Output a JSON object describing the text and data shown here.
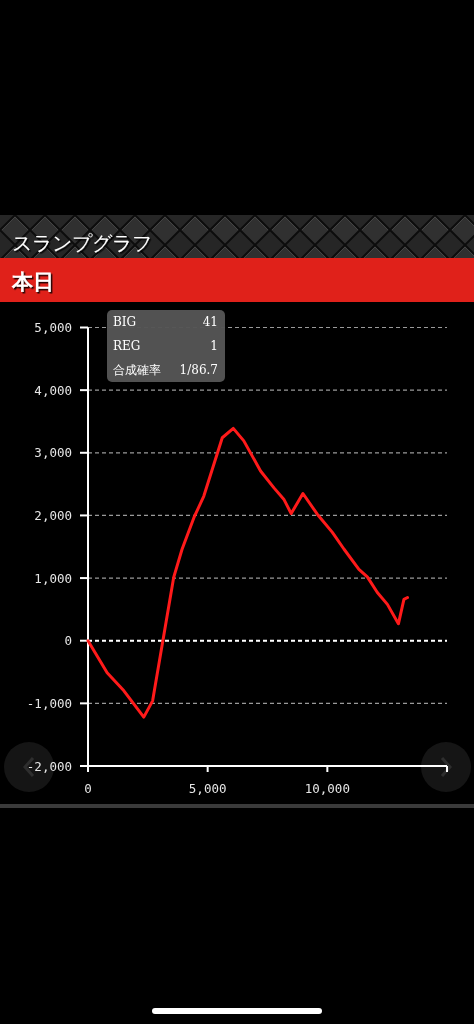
{
  "chart_data": {
    "type": "line",
    "title": "スランプグラフ",
    "subtitle": "本日",
    "x": [
      0,
      800,
      1500,
      2330,
      2700,
      3580,
      3930,
      4420,
      4840,
      5610,
      6070,
      6510,
      7210,
      7770,
      8180,
      8490,
      8980,
      9580,
      10210,
      10700,
      11320,
      11670,
      12090,
      12510,
      12970,
      13200,
      13350
    ],
    "series": [
      {
        "color": "#ff1a1a",
        "values": [
          0,
          -510,
          -800,
          -1220,
          -960,
          1010,
          1460,
          1960,
          2310,
          3240,
          3390,
          3190,
          2710,
          2440,
          2260,
          2030,
          2350,
          2020,
          1730,
          1460,
          1140,
          1020,
          770,
          580,
          270,
          660,
          690
        ]
      }
    ],
    "xlim": [
      0,
      15000
    ],
    "xticks": [
      0,
      {
        "value": 5000,
        "label": "5,000"
      },
      {
        "value": 10000,
        "label": "10,000"
      },
      {
        "value": 15000,
        "label": null
      }
    ],
    "ylim": [
      -2000,
      5000
    ],
    "yticks": [
      {
        "value": -2000,
        "label": "-2,000"
      },
      {
        "value": -1000,
        "label": "-1,000"
      },
      0,
      {
        "value": 1000,
        "label": "1,000"
      },
      {
        "value": 2000,
        "label": "2,000"
      },
      {
        "value": 3000,
        "label": "3,000"
      },
      {
        "value": 4000,
        "label": "4,000"
      },
      {
        "value": 5000,
        "label": "5,000"
      }
    ],
    "grid": "y",
    "line_style": "solid",
    "ref_lines": [
      {
        "axis": "y",
        "value": 0,
        "color": "#ffffff",
        "line_style": "dashed"
      }
    ],
    "annotations": [
      "BIG",
      "41",
      "REG",
      "1",
      "合成確率",
      "1/86.7"
    ]
  }
}
